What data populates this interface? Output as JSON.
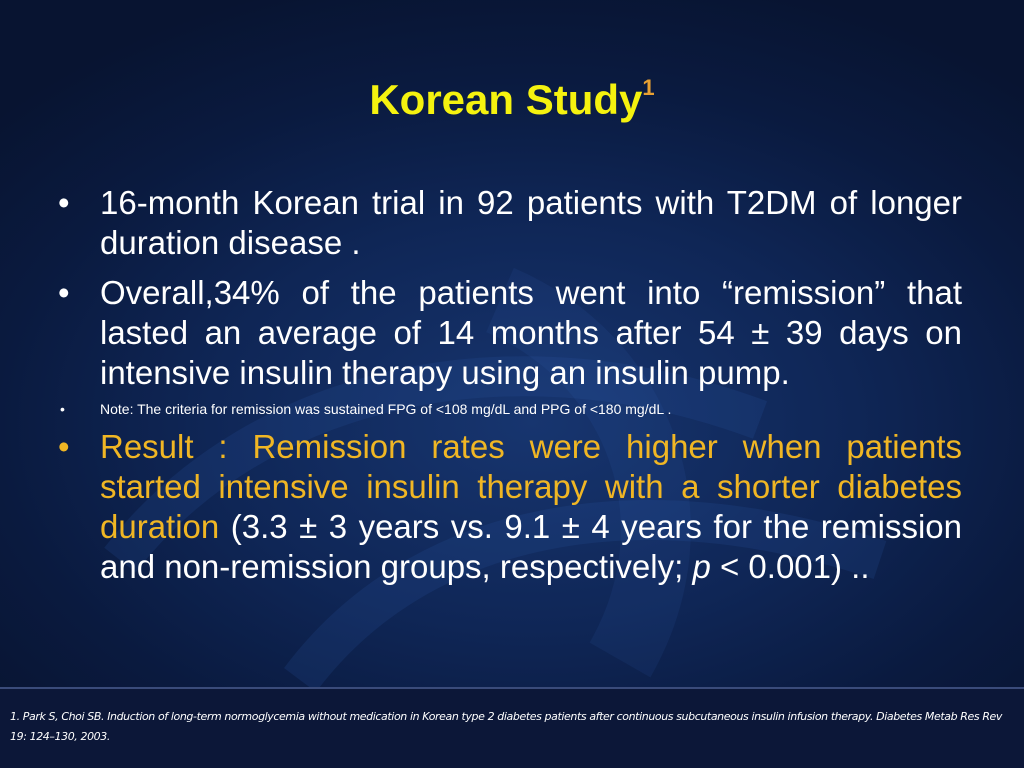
{
  "slide": {
    "title": "Korean Study",
    "title_superscript": "1",
    "bullets": [
      {
        "marker": "•",
        "text": "16-month Korean trial in 92 patients with T2DM of longer duration disease ."
      },
      {
        "marker": "•",
        "text": "Overall,34% of the patients went into “remission” that lasted an average of 14 months after 54 ± 39 days on intensive insulin therapy using an insulin pump."
      }
    ],
    "note": {
      "marker": "•",
      "text": "Note: The criteria for remission was sustained FPG of <108 mg/dL and PPG of <180 mg/dL ."
    },
    "result": {
      "marker": "•",
      "highlight": "Result : Remission rates were higher when patients started intensive insulin therapy with a shorter diabetes duration",
      "rest": " (3.3 ± 3 years vs. 9.1 ± 4 years for the remission and non-remission groups, respectively; ",
      "p_symbol": "p",
      "end": " < 0.001) .."
    },
    "footer": "1. Park S, Choi SB. Induction of long-term normoglycemia without medication in Korean type 2 diabetes patients after continuous subcutaneous insulin infusion therapy. Diabetes Metab Res Rev 19: 124–130, 2003."
  },
  "colors": {
    "title": "#f5f20f",
    "superscript": "#e8a032",
    "result_highlight": "#f0b624",
    "background": "#0f2656"
  }
}
